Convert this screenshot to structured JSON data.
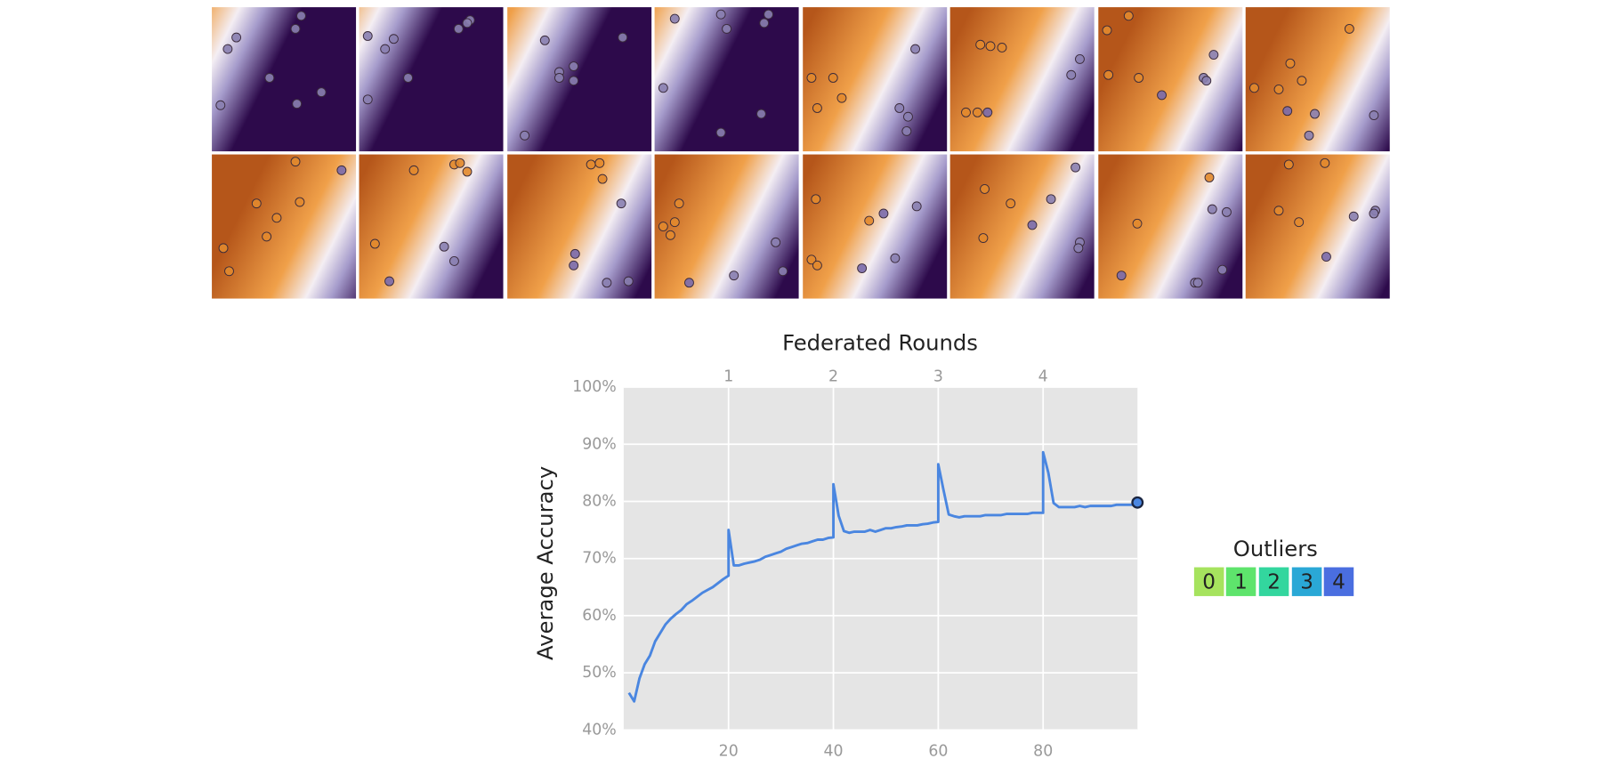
{
  "tiles": [
    {
      "points": [
        [
          0.62,
          0.06,
          "#8a80b0"
        ],
        [
          0.17,
          0.21,
          "#8a80b0"
        ],
        [
          0.11,
          0.29,
          "#8a80b0"
        ],
        [
          0.58,
          0.15,
          "#8a80b0"
        ],
        [
          0.4,
          0.49,
          "#8a80b0"
        ],
        [
          0.76,
          0.59,
          "#8a80b0"
        ],
        [
          0.06,
          0.68,
          "#8a80b0"
        ],
        [
          0.59,
          0.67,
          "#8a80b0"
        ]
      ]
    },
    {
      "points": [
        [
          0.06,
          0.2,
          "#8a80b0"
        ],
        [
          0.24,
          0.22,
          "#8a80b0"
        ],
        [
          0.18,
          0.29,
          "#8a80b0"
        ],
        [
          0.77,
          0.09,
          "#8a80b0"
        ],
        [
          0.75,
          0.11,
          "#8a80b0"
        ],
        [
          0.69,
          0.15,
          "#8a80b0"
        ],
        [
          0.34,
          0.49,
          "#8a80b0"
        ],
        [
          0.06,
          0.64,
          "#8a80b0"
        ]
      ]
    },
    {
      "points": [
        [
          0.26,
          0.23,
          "#8a80b0"
        ],
        [
          0.8,
          0.21,
          "#8a80b0"
        ],
        [
          0.46,
          0.41,
          "#8a80b0"
        ],
        [
          0.36,
          0.45,
          "#8a80b0"
        ],
        [
          0.36,
          0.49,
          "#8a80b0"
        ],
        [
          0.46,
          0.51,
          "#8a80b0"
        ],
        [
          0.12,
          0.89,
          "#8a80b0"
        ]
      ]
    },
    {
      "points": [
        [
          0.14,
          0.08,
          "#8a80b0"
        ],
        [
          0.46,
          0.05,
          "#8a80b0"
        ],
        [
          0.79,
          0.05,
          "#8a80b0"
        ],
        [
          0.5,
          0.15,
          "#8a80b0"
        ],
        [
          0.76,
          0.11,
          "#8a80b0"
        ],
        [
          0.06,
          0.56,
          "#8a80b0"
        ],
        [
          0.74,
          0.74,
          "#8a80b0"
        ],
        [
          0.46,
          0.87,
          "#8a80b0"
        ]
      ]
    },
    {
      "points": [
        [
          0.06,
          0.49,
          "#e2892e"
        ],
        [
          0.21,
          0.49,
          "#e2892e"
        ],
        [
          0.1,
          0.7,
          "#e2892e"
        ],
        [
          0.27,
          0.63,
          "#e2892e"
        ],
        [
          0.78,
          0.29,
          "#8a80b0"
        ],
        [
          0.67,
          0.7,
          "#8a80b0"
        ],
        [
          0.73,
          0.76,
          "#8a80b0"
        ],
        [
          0.72,
          0.86,
          "#8a80b0"
        ]
      ]
    },
    {
      "points": [
        [
          0.21,
          0.26,
          "#e2892e"
        ],
        [
          0.28,
          0.27,
          "#e2892e"
        ],
        [
          0.36,
          0.28,
          "#e2892e"
        ],
        [
          0.11,
          0.73,
          "#e2892e"
        ],
        [
          0.19,
          0.73,
          "#e2892e"
        ],
        [
          0.26,
          0.73,
          "#7a6aac"
        ],
        [
          0.84,
          0.47,
          "#8a80b0"
        ],
        [
          0.9,
          0.36,
          "#8a80b0"
        ]
      ]
    },
    {
      "points": [
        [
          0.21,
          0.06,
          "#e2892e"
        ],
        [
          0.06,
          0.16,
          "#e2892e"
        ],
        [
          0.07,
          0.47,
          "#e2892e"
        ],
        [
          0.28,
          0.49,
          "#e2892e"
        ],
        [
          0.44,
          0.61,
          "#7a6aac"
        ],
        [
          0.8,
          0.33,
          "#8a80b0"
        ],
        [
          0.73,
          0.49,
          "#8a80b0"
        ],
        [
          0.75,
          0.51,
          "#8a80b0"
        ]
      ]
    },
    {
      "points": [
        [
          0.31,
          0.39,
          "#e2892e"
        ],
        [
          0.23,
          0.57,
          "#e2892e"
        ],
        [
          0.39,
          0.51,
          "#e2892e"
        ],
        [
          0.06,
          0.56,
          "#e2892e"
        ],
        [
          0.29,
          0.72,
          "#7a6aac"
        ],
        [
          0.48,
          0.74,
          "#8a80b0"
        ],
        [
          0.44,
          0.89,
          "#8a80b0"
        ],
        [
          0.89,
          0.75,
          "#8a80b0"
        ],
        [
          0.72,
          0.15,
          "#e2892e"
        ]
      ]
    },
    {
      "points": [
        [
          0.58,
          0.05,
          "#e2892e"
        ],
        [
          0.31,
          0.34,
          "#e2892e"
        ],
        [
          0.45,
          0.44,
          "#e2892e"
        ],
        [
          0.61,
          0.33,
          "#e2892e"
        ],
        [
          0.38,
          0.57,
          "#e2892e"
        ],
        [
          0.08,
          0.65,
          "#e2892e"
        ],
        [
          0.12,
          0.81,
          "#e2892e"
        ],
        [
          0.9,
          0.11,
          "#7a6aac"
        ]
      ]
    },
    {
      "points": [
        [
          0.38,
          0.11,
          "#e2892e"
        ],
        [
          0.66,
          0.07,
          "#e2892e"
        ],
        [
          0.7,
          0.06,
          "#e2892e"
        ],
        [
          0.75,
          0.12,
          "#e2892e"
        ],
        [
          0.11,
          0.62,
          "#e2892e"
        ],
        [
          0.59,
          0.64,
          "#8a80b0"
        ],
        [
          0.66,
          0.74,
          "#8a80b0"
        ],
        [
          0.21,
          0.88,
          "#7a6aac"
        ]
      ]
    },
    {
      "points": [
        [
          0.58,
          0.07,
          "#e2892e"
        ],
        [
          0.64,
          0.06,
          "#e2892e"
        ],
        [
          0.66,
          0.17,
          "#e2892e"
        ],
        [
          0.79,
          0.34,
          "#8a80b0"
        ],
        [
          0.47,
          0.69,
          "#7a6aac"
        ],
        [
          0.46,
          0.77,
          "#7a6aac"
        ],
        [
          0.69,
          0.89,
          "#8a80b0"
        ],
        [
          0.84,
          0.88,
          "#8a80b0"
        ]
      ]
    },
    {
      "points": [
        [
          0.17,
          0.34,
          "#e2892e"
        ],
        [
          0.06,
          0.5,
          "#e2892e"
        ],
        [
          0.14,
          0.47,
          "#e2892e"
        ],
        [
          0.11,
          0.56,
          "#e2892e"
        ],
        [
          0.24,
          0.89,
          "#7a6aac"
        ],
        [
          0.55,
          0.84,
          "#8a80b0"
        ],
        [
          0.84,
          0.61,
          "#8a80b0"
        ],
        [
          0.89,
          0.81,
          "#8a80b0"
        ]
      ]
    },
    {
      "points": [
        [
          0.09,
          0.31,
          "#e2892e"
        ],
        [
          0.46,
          0.46,
          "#e2892e"
        ],
        [
          0.06,
          0.73,
          "#e2892e"
        ],
        [
          0.1,
          0.77,
          "#e2892e"
        ],
        [
          0.56,
          0.41,
          "#7a6aac"
        ],
        [
          0.79,
          0.36,
          "#8a80b0"
        ],
        [
          0.64,
          0.72,
          "#8a80b0"
        ],
        [
          0.41,
          0.79,
          "#7a6aac"
        ]
      ]
    },
    {
      "points": [
        [
          0.24,
          0.24,
          "#e2892e"
        ],
        [
          0.42,
          0.34,
          "#e2892e"
        ],
        [
          0.23,
          0.58,
          "#e2892e"
        ],
        [
          0.87,
          0.09,
          "#8a80b0"
        ],
        [
          0.7,
          0.31,
          "#8a80b0"
        ],
        [
          0.57,
          0.49,
          "#7a6aac"
        ],
        [
          0.9,
          0.61,
          "#8a80b0"
        ],
        [
          0.89,
          0.65,
          "#8a80b0"
        ]
      ]
    },
    {
      "points": [
        [
          0.77,
          0.16,
          "#e2892e"
        ],
        [
          0.27,
          0.48,
          "#e2892e"
        ],
        [
          0.79,
          0.38,
          "#8a80b0"
        ],
        [
          0.89,
          0.4,
          "#8a80b0"
        ],
        [
          0.16,
          0.84,
          "#7a6aac"
        ],
        [
          0.86,
          0.8,
          "#8a80b0"
        ],
        [
          0.67,
          0.89,
          "#8a80b0"
        ],
        [
          0.69,
          0.89,
          "#8a80b0"
        ]
      ]
    },
    {
      "points": [
        [
          0.3,
          0.07,
          "#e2892e"
        ],
        [
          0.55,
          0.06,
          "#e2892e"
        ],
        [
          0.23,
          0.39,
          "#e2892e"
        ],
        [
          0.37,
          0.47,
          "#e2892e"
        ],
        [
          0.75,
          0.43,
          "#8a80b0"
        ],
        [
          0.9,
          0.39,
          "#8a80b0"
        ],
        [
          0.89,
          0.41,
          "#8a80b0"
        ],
        [
          0.56,
          0.71,
          "#7a6aac"
        ]
      ]
    }
  ],
  "chart_data": {
    "type": "line",
    "title": "Federated Rounds",
    "y_label": "Average Accuracy",
    "x": [
      1,
      2,
      3,
      4,
      5,
      6,
      7,
      8,
      9,
      10,
      11,
      12,
      13,
      14,
      15,
      16,
      17,
      18,
      19,
      20,
      20,
      21,
      22,
      23,
      24,
      25,
      26,
      27,
      28,
      29,
      30,
      31,
      32,
      33,
      34,
      35,
      36,
      37,
      38,
      39,
      40,
      40,
      41,
      42,
      43,
      44,
      45,
      46,
      47,
      48,
      49,
      50,
      51,
      52,
      53,
      54,
      55,
      56,
      57,
      58,
      59,
      60,
      60,
      61,
      62,
      63,
      64,
      65,
      66,
      67,
      68,
      69,
      70,
      71,
      72,
      73,
      74,
      75,
      76,
      77,
      78,
      79,
      80,
      80,
      81,
      82,
      83,
      84,
      85,
      86,
      87,
      88,
      89,
      90,
      91,
      92,
      93,
      94,
      95,
      96,
      97,
      98
    ],
    "values": [
      46.5,
      45,
      49,
      51.5,
      53,
      55.5,
      57,
      58.5,
      59.5,
      60.3,
      61,
      62,
      62.6,
      63.3,
      64,
      64.5,
      65,
      65.7,
      66.4,
      67,
      75,
      68.8,
      68.8,
      69.1,
      69.3,
      69.5,
      69.8,
      70.3,
      70.6,
      70.9,
      71.2,
      71.7,
      72,
      72.3,
      72.6,
      72.7,
      73,
      73.3,
      73.3,
      73.6,
      73.7,
      83,
      77.5,
      74.8,
      74.5,
      74.7,
      74.7,
      74.7,
      75,
      74.7,
      75,
      75.3,
      75.3,
      75.5,
      75.6,
      75.8,
      75.8,
      75.8,
      76,
      76.1,
      76.3,
      76.4,
      86.5,
      82,
      77.7,
      77.4,
      77.2,
      77.4,
      77.4,
      77.4,
      77.4,
      77.6,
      77.6,
      77.6,
      77.6,
      77.8,
      77.8,
      77.8,
      77.8,
      77.8,
      78,
      78,
      78,
      88.6,
      85,
      79.7,
      79,
      79,
      79,
      79,
      79.2,
      79,
      79.2,
      79.2,
      79.2,
      79.2,
      79.2,
      79.4,
      79.4,
      79.4,
      79.4,
      79.8
    ],
    "color": "#4a86e0",
    "xlim": [
      0,
      98
    ],
    "xticks": [
      20,
      40,
      60,
      80
    ],
    "x2ticks": [
      {
        "value": 20,
        "label": "1"
      },
      {
        "value": 40,
        "label": "2"
      },
      {
        "value": 60,
        "label": "3"
      },
      {
        "value": 80,
        "label": "4"
      }
    ],
    "ylim": [
      40,
      100
    ],
    "yticks": [
      {
        "value": 40,
        "label": "40%"
      },
      {
        "value": 50,
        "label": "50%"
      },
      {
        "value": 60,
        "label": "60%"
      },
      {
        "value": 70,
        "label": "70%"
      },
      {
        "value": 80,
        "label": "80%"
      },
      {
        "value": 90,
        "label": "90%"
      },
      {
        "value": 100,
        "label": "100%"
      }
    ],
    "grid": true
  },
  "legend": {
    "title": "Outliers",
    "items": [
      {
        "label": "0",
        "color": "#a6e35e"
      },
      {
        "label": "1",
        "color": "#5ee46c"
      },
      {
        "label": "2",
        "color": "#33d69e"
      },
      {
        "label": "3",
        "color": "#2aa8d6"
      },
      {
        "label": "4",
        "color": "#4a6ee0"
      }
    ]
  }
}
